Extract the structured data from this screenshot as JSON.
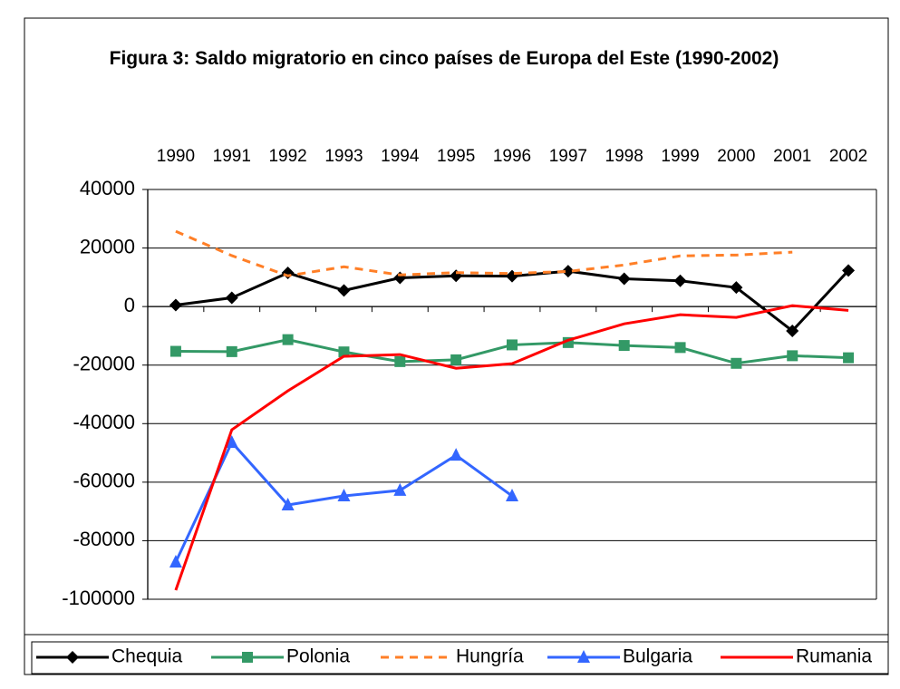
{
  "chart_data": {
    "type": "line",
    "title": "Figura 3: Saldo migratorio en cinco países de Europa del Este (1990-2002)",
    "categories": [
      "1990",
      "1991",
      "1992",
      "1993",
      "1994",
      "1995",
      "1996",
      "1997",
      "1998",
      "1999",
      "2000",
      "2001",
      "2002"
    ],
    "ylim": [
      -100000,
      40000
    ],
    "yticks": [
      -100000,
      -80000,
      -60000,
      -40000,
      -20000,
      0,
      20000,
      40000
    ],
    "grid": true,
    "legend": "bottom",
    "series": [
      {
        "name": "Chequia",
        "color": "#000000",
        "marker": "diamond",
        "dashed": false,
        "values": [
          500,
          3000,
          11500,
          5500,
          9800,
          10500,
          10400,
          12100,
          9500,
          8800,
          6500,
          -8300,
          12300
        ]
      },
      {
        "name": "Polonia",
        "color": "#339966",
        "marker": "square",
        "dashed": false,
        "values": [
          -15300,
          -15400,
          -11300,
          -15500,
          -18800,
          -18200,
          -13100,
          -12300,
          -13300,
          -14000,
          -19400,
          -16800,
          -17500
        ]
      },
      {
        "name": "Hungría",
        "color": "#ff7f27",
        "marker": "none",
        "dashed": true,
        "values": [
          25700,
          17400,
          10500,
          13600,
          10800,
          11600,
          11300,
          12000,
          14200,
          17300,
          17600,
          18600,
          null
        ]
      },
      {
        "name": "Bulgaria",
        "color": "#3366ff",
        "marker": "triangle",
        "dashed": false,
        "values": [
          -87300,
          -46400,
          -67800,
          -64700,
          -62800,
          -50800,
          -64700,
          null,
          null,
          null,
          null,
          null,
          null
        ]
      },
      {
        "name": "Rumania",
        "color": "#ff0000",
        "marker": "none",
        "dashed": false,
        "values": [
          -96900,
          -42100,
          -28800,
          -17000,
          -16400,
          -21100,
          -19500,
          -11500,
          -5900,
          -2800,
          -3700,
          300,
          -1300
        ]
      }
    ]
  }
}
